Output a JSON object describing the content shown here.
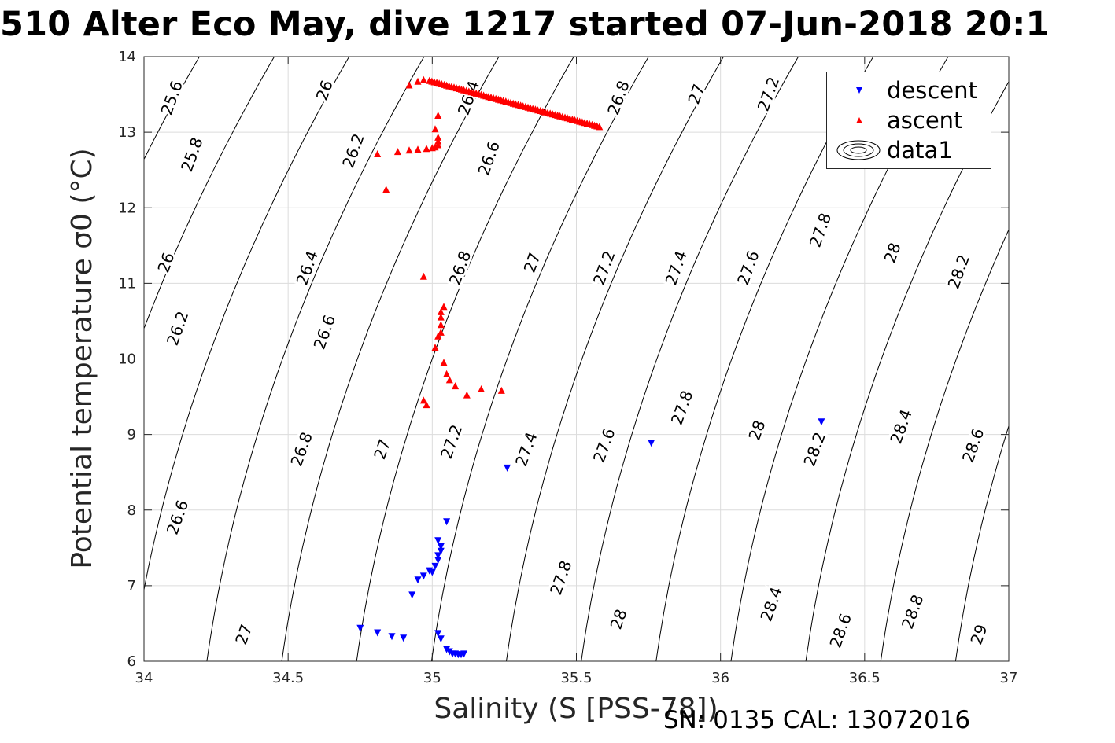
{
  "title": "510 Alter Eco May, dive 1217 started 07-Jun-2018 20:1",
  "footer": "SN: 0135  CAL: 13072016",
  "colors": {
    "descent": "#0000ff",
    "ascent": "#ff0000",
    "contour": "#000000",
    "grid": "#dcdcdc",
    "axis": "#262626"
  },
  "chart_data": {
    "type": "scatter",
    "title": "510 Alter Eco May, dive 1217 started 07-Jun-2018 20:1",
    "xlabel": "Salinity (S [PSS-78])",
    "ylabel": "Potential temperature σ0 (°C)",
    "xlim": [
      34,
      37
    ],
    "ylim": [
      6,
      14
    ],
    "xticks": [
      34,
      34.5,
      35,
      35.5,
      36,
      36.5,
      37
    ],
    "xtick_labels": [
      "34",
      "34.5",
      "35",
      "35.5",
      "36",
      "36.5",
      "37"
    ],
    "yticks": [
      6,
      7,
      8,
      9,
      10,
      11,
      12,
      13,
      14
    ],
    "ytick_labels": [
      "6",
      "7",
      "8",
      "9",
      "10",
      "11",
      "12",
      "13",
      "14"
    ],
    "grid": true,
    "legend_position": "top-right",
    "legend": [
      "descent",
      "ascent",
      "data1"
    ],
    "contour_levels": [
      25.6,
      25.8,
      26,
      26.2,
      26.4,
      26.6,
      26.8,
      27,
      27.2,
      27.4,
      27.6,
      27.8,
      28,
      28.2,
      28.4,
      28.6,
      28.8,
      29
    ],
    "contour_labels": [
      {
        "text": "25.6",
        "x": 34.1,
        "y": 13.45
      },
      {
        "text": "26",
        "x": 34.63,
        "y": 13.55
      },
      {
        "text": "26.4",
        "x": 35.13,
        "y": 13.45
      },
      {
        "text": "26.8",
        "x": 35.65,
        "y": 13.45
      },
      {
        "text": "27",
        "x": 35.92,
        "y": 13.5
      },
      {
        "text": "27.2",
        "x": 36.17,
        "y": 13.5
      },
      {
        "text": "25.8",
        "x": 34.17,
        "y": 12.7
      },
      {
        "text": "26.2",
        "x": 34.73,
        "y": 12.75
      },
      {
        "text": "26.6",
        "x": 35.2,
        "y": 12.65
      },
      {
        "text": "26",
        "x": 34.08,
        "y": 11.27
      },
      {
        "text": "26.4",
        "x": 34.57,
        "y": 11.2
      },
      {
        "text": "26.8",
        "x": 35.1,
        "y": 11.2
      },
      {
        "text": "27",
        "x": 35.35,
        "y": 11.27
      },
      {
        "text": "27.2",
        "x": 35.6,
        "y": 11.2
      },
      {
        "text": "27.4",
        "x": 35.85,
        "y": 11.2
      },
      {
        "text": "27.6",
        "x": 36.1,
        "y": 11.2
      },
      {
        "text": "27.8",
        "x": 36.35,
        "y": 11.7
      },
      {
        "text": "28",
        "x": 36.6,
        "y": 11.4
      },
      {
        "text": "28.2",
        "x": 36.83,
        "y": 11.15
      },
      {
        "text": "26.2",
        "x": 34.12,
        "y": 10.4
      },
      {
        "text": "26.6",
        "x": 34.63,
        "y": 10.35
      },
      {
        "text": "26.8",
        "x": 34.55,
        "y": 8.8
      },
      {
        "text": "27",
        "x": 34.83,
        "y": 8.8
      },
      {
        "text": "27.2",
        "x": 35.07,
        "y": 8.9
      },
      {
        "text": "27.4",
        "x": 35.33,
        "y": 8.8
      },
      {
        "text": "27.6",
        "x": 35.6,
        "y": 8.85
      },
      {
        "text": "27.8",
        "x": 35.87,
        "y": 9.35
      },
      {
        "text": "28",
        "x": 36.13,
        "y": 9.05
      },
      {
        "text": "28.2",
        "x": 36.33,
        "y": 8.8
      },
      {
        "text": "28.4",
        "x": 36.63,
        "y": 9.1
      },
      {
        "text": "28.6",
        "x": 36.88,
        "y": 8.85
      },
      {
        "text": "26.6",
        "x": 34.12,
        "y": 7.9
      },
      {
        "text": "27.8",
        "x": 35.45,
        "y": 7.1
      },
      {
        "text": "28",
        "x": 35.65,
        "y": 6.55
      },
      {
        "text": "27",
        "x": 34.35,
        "y": 6.35
      },
      {
        "text": "28.4",
        "x": 36.18,
        "y": 6.75
      },
      {
        "text": "28.6",
        "x": 36.42,
        "y": 6.4
      },
      {
        "text": "28.8",
        "x": 36.67,
        "y": 6.65
      },
      {
        "text": "29",
        "x": 36.9,
        "y": 6.35
      }
    ],
    "series": [
      {
        "name": "descent",
        "marker": "triangle-down",
        "color": "#0000ff",
        "points": [
          [
            34.75,
            6.44
          ],
          [
            34.81,
            6.38
          ],
          [
            34.86,
            6.33
          ],
          [
            34.9,
            6.31
          ],
          [
            35.02,
            6.37
          ],
          [
            35.03,
            6.3
          ],
          [
            35.05,
            6.16
          ],
          [
            35.06,
            6.13
          ],
          [
            35.07,
            6.1
          ],
          [
            35.08,
            6.1
          ],
          [
            35.09,
            6.09
          ],
          [
            35.1,
            6.09
          ],
          [
            35.11,
            6.1
          ],
          [
            34.93,
            6.88
          ],
          [
            34.95,
            7.08
          ],
          [
            34.97,
            7.13
          ],
          [
            34.99,
            7.2
          ],
          [
            35.0,
            7.18
          ],
          [
            35.01,
            7.26
          ],
          [
            35.02,
            7.34
          ],
          [
            35.02,
            7.4
          ],
          [
            35.03,
            7.46
          ],
          [
            35.03,
            7.52
          ],
          [
            35.02,
            7.6
          ],
          [
            35.05,
            7.85
          ],
          [
            35.26,
            8.56
          ],
          [
            35.76,
            8.89
          ],
          [
            36.35,
            9.17
          ]
        ]
      },
      {
        "name": "ascent",
        "marker": "triangle-up",
        "color": "#ff0000",
        "points": [
          [
            34.81,
            12.71
          ],
          [
            34.84,
            12.24
          ],
          [
            34.88,
            12.74
          ],
          [
            34.92,
            12.76
          ],
          [
            34.95,
            12.77
          ],
          [
            34.98,
            12.78
          ],
          [
            35.0,
            12.79
          ],
          [
            35.01,
            12.8
          ],
          [
            35.02,
            12.83
          ],
          [
            35.02,
            12.88
          ],
          [
            35.02,
            12.93
          ],
          [
            35.01,
            13.04
          ],
          [
            35.02,
            13.22
          ],
          [
            34.92,
            13.62
          ],
          [
            34.95,
            13.67
          ],
          [
            34.97,
            13.69
          ],
          [
            34.97,
            11.09
          ],
          [
            35.01,
            10.15
          ],
          [
            35.02,
            10.3
          ],
          [
            35.03,
            10.35
          ],
          [
            35.03,
            10.45
          ],
          [
            35.03,
            10.55
          ],
          [
            35.03,
            10.62
          ],
          [
            35.04,
            10.69
          ],
          [
            35.04,
            9.95
          ],
          [
            35.05,
            9.8
          ],
          [
            35.06,
            9.72
          ],
          [
            35.08,
            9.64
          ],
          [
            35.12,
            9.52
          ],
          [
            35.17,
            9.6
          ],
          [
            35.24,
            9.58
          ],
          [
            34.97,
            9.45
          ],
          [
            34.98,
            9.39
          ]
        ],
        "segment": {
          "from": [
            34.99,
            13.68
          ],
          "to": [
            35.58,
            13.07
          ],
          "count": 70
        }
      }
    ]
  }
}
